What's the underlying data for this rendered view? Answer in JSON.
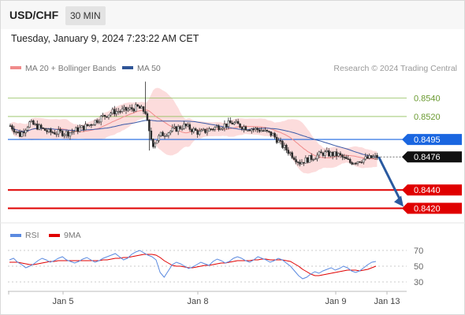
{
  "header": {
    "symbol": "USD/CHF",
    "timeframe": "30 MIN",
    "datetime": "Tuesday, January 9, 2024 7:23:22 AM CET"
  },
  "legend": {
    "items": [
      {
        "label": "MA 20 + Bollinger Bands",
        "color": "#f08b8b"
      },
      {
        "label": "MA 50",
        "color": "#2f5597"
      }
    ],
    "credit": "Research © 2024 Trading Central"
  },
  "colors": {
    "up_candle": "#f0f0f0",
    "down_candle": "#2b2b2b",
    "band_fill": "#fcd6d6",
    "ma20": "#f08b8b",
    "ma50": "#3a5aa8",
    "green_level": "#8fbf5a",
    "blue_level": "#1a66e0",
    "red_level": "#e00000",
    "arrow": "#2a5aa0",
    "rsi": "#5b8ae0",
    "rsi_ma": "#e00000"
  },
  "chart_data": [
    {
      "type": "candlestick",
      "ylim": [
        0.8405,
        0.858
      ],
      "x_ticks": [
        "Jan 5",
        "Jan 8",
        "Jan 9",
        "Jan 13"
      ],
      "levels": [
        {
          "value": 0.854,
          "label": "0.8540",
          "kind": "resistance",
          "style": "line"
        },
        {
          "value": 0.852,
          "label": "0.8520",
          "kind": "resistance",
          "style": "line"
        },
        {
          "value": 0.8495,
          "label": "0.8495",
          "kind": "pivot",
          "style": "band"
        },
        {
          "value": 0.8476,
          "label": "0.8476",
          "kind": "last",
          "style": "tag"
        },
        {
          "value": 0.844,
          "label": "0.8440",
          "kind": "support",
          "style": "band"
        },
        {
          "value": 0.842,
          "label": "0.8420",
          "kind": "support",
          "style": "band"
        }
      ],
      "forecast": {
        "from": 0.8476,
        "to": 0.842
      }
    },
    {
      "type": "line",
      "title": "RSI",
      "legend": [
        {
          "label": "RSI",
          "color": "#5b8ae0"
        },
        {
          "label": "9MA",
          "color": "#e00000"
        }
      ],
      "ylim": [
        22,
        78
      ],
      "y_ticks": [
        70,
        50,
        30
      ],
      "rsi": [
        58,
        60,
        55,
        52,
        48,
        50,
        53,
        57,
        60,
        58,
        55,
        57,
        60,
        62,
        58,
        56,
        54,
        56,
        59,
        61,
        58,
        55,
        57,
        60,
        62,
        64,
        66,
        62,
        58,
        60,
        65,
        68,
        70,
        67,
        64,
        62,
        58,
        42,
        36,
        44,
        52,
        55,
        53,
        50,
        47,
        49,
        52,
        55,
        53,
        51,
        56,
        59,
        57,
        54,
        56,
        60,
        62,
        60,
        57,
        55,
        58,
        62,
        60,
        58,
        55,
        57,
        60,
        58,
        54,
        50,
        44,
        38,
        34,
        36,
        40,
        43,
        41,
        44,
        46,
        48,
        45,
        47,
        50,
        48,
        44,
        42,
        44,
        48,
        52,
        55,
        56
      ],
      "rsi_ma": [
        55,
        55,
        55,
        54,
        53,
        52,
        52,
        53,
        54,
        55,
        56,
        56,
        57,
        57,
        57,
        57,
        57,
        57,
        57,
        57,
        57,
        57,
        57,
        58,
        58,
        59,
        60,
        60,
        61,
        61,
        62,
        63,
        64,
        65,
        65,
        65,
        64,
        61,
        57,
        54,
        51,
        50,
        50,
        49,
        48,
        48,
        49,
        50,
        51,
        51,
        52,
        53,
        54,
        54,
        55,
        56,
        57,
        57,
        57,
        57,
        58,
        58,
        59,
        59,
        58,
        58,
        58,
        58,
        57,
        56,
        53,
        50,
        46,
        43,
        40,
        38,
        38,
        39,
        40,
        41,
        42,
        43,
        44,
        45,
        45,
        45,
        44,
        45,
        46,
        48,
        50
      ]
    }
  ]
}
